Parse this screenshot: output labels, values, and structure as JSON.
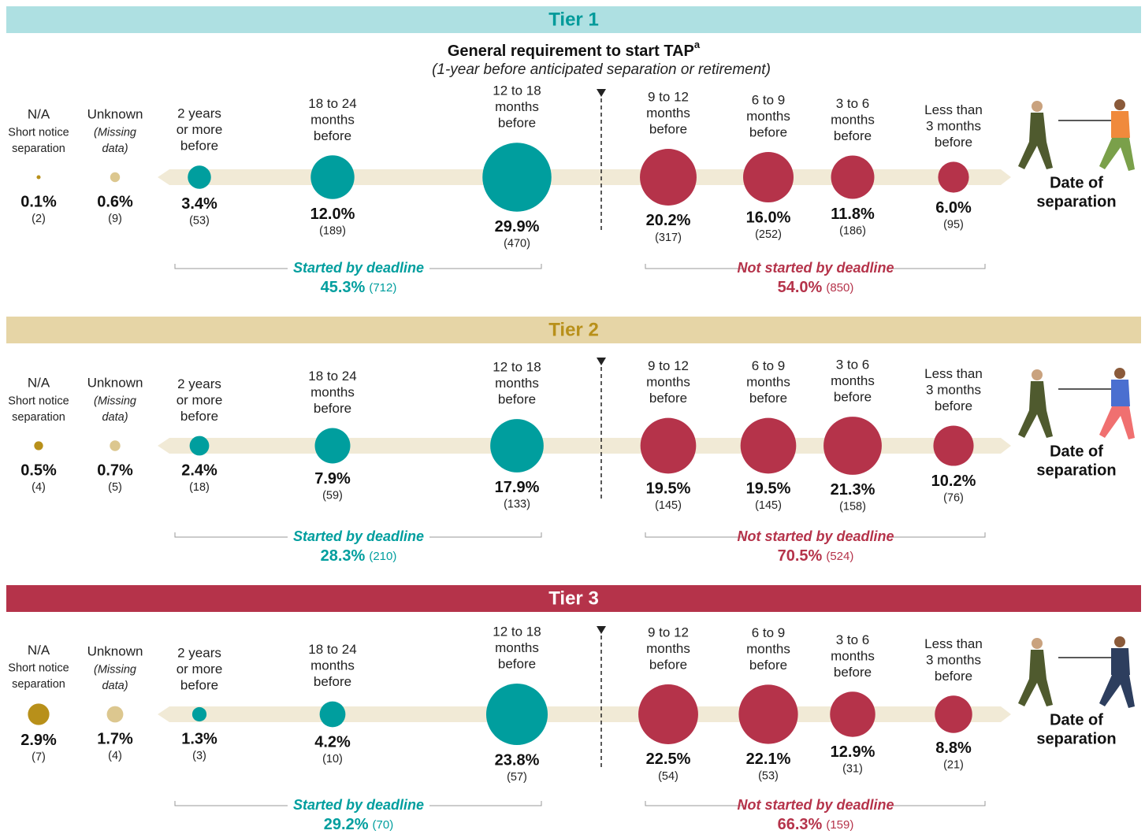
{
  "title": "General requirement to start TAP",
  "title_note": "a",
  "subtitle": "(1-year before anticipated separation or retirement)",
  "columns": [
    [
      "N/A",
      "Short notice",
      "separation"
    ],
    [
      "Unknown",
      "(Missing",
      "data)"
    ],
    [
      "2 years",
      "or more",
      "before"
    ],
    [
      "18 to 24",
      "months",
      "before"
    ],
    [
      "12 to 18",
      "months",
      "before"
    ],
    [
      "9 to 12",
      "months",
      "before"
    ],
    [
      "6 to 9",
      "months",
      "before"
    ],
    [
      "3 to 6",
      "months",
      "before"
    ],
    [
      "Less than",
      "3 months",
      "before"
    ]
  ],
  "colors": [
    "#b8901a",
    "#dcc78f",
    "#009e9e",
    "#009e9e",
    "#009e9e",
    "#b5334a",
    "#b5334a",
    "#b5334a",
    "#b5334a"
  ],
  "end_label": [
    "Date of",
    "separation"
  ],
  "started_label": "Started by deadline",
  "not_started_label": "Not started by deadline",
  "started_color": "#009e9e",
  "not_started_color": "#b5334a",
  "tiers": [
    {
      "name": "Tier 1",
      "header_color": "#aee0e2",
      "name_color": "#009a9a",
      "values": [
        0.1,
        0.6,
        3.4,
        12.0,
        29.9,
        20.2,
        16.0,
        11.8,
        6.0
      ],
      "value_labels": [
        "0.1%",
        "0.6%",
        "3.4%",
        "12.0%",
        "29.9%",
        "20.2%",
        "16.0%",
        "11.8%",
        "6.0%"
      ],
      "count_labels": [
        "(2)",
        "(9)",
        "(53)",
        "(189)",
        "(470)",
        "(317)",
        "(252)",
        "(186)",
        "(95)"
      ],
      "started_label": "45.3%",
      "started_count": "(712)",
      "not_started_label": "54.0%",
      "not_started_count": "(850)"
    },
    {
      "name": "Tier 2",
      "header_color": "#e6d5a6",
      "name_color": "#b8901a",
      "values": [
        0.5,
        0.7,
        2.4,
        7.9,
        17.9,
        19.5,
        19.5,
        21.3,
        10.2
      ],
      "value_labels": [
        "0.5%",
        "0.7%",
        "2.4%",
        "7.9%",
        "17.9%",
        "19.5%",
        "19.5%",
        "21.3%",
        "10.2%"
      ],
      "count_labels": [
        "(4)",
        "(5)",
        "(18)",
        "(59)",
        "(133)",
        "(145)",
        "(145)",
        "(158)",
        "(76)"
      ],
      "started_label": "28.3%",
      "started_count": "(210)",
      "not_started_label": "70.5%",
      "not_started_count": "(524)"
    },
    {
      "name": "Tier 3",
      "header_color": "#b5334a",
      "name_color": "#ffffff",
      "values": [
        2.9,
        1.7,
        1.3,
        4.2,
        23.8,
        22.5,
        22.1,
        12.9,
        8.8
      ],
      "value_labels": [
        "2.9%",
        "1.7%",
        "1.3%",
        "4.2%",
        "23.8%",
        "22.5%",
        "22.1%",
        "12.9%",
        "8.8%"
      ],
      "count_labels": [
        "(7)",
        "(4)",
        "(3)",
        "(10)",
        "(57)",
        "(54)",
        "(53)",
        "(31)",
        "(21)"
      ],
      "started_label": "29.2%",
      "started_count": "(70)",
      "not_started_label": "66.3%",
      "not_started_count": "(159)"
    }
  ]
}
